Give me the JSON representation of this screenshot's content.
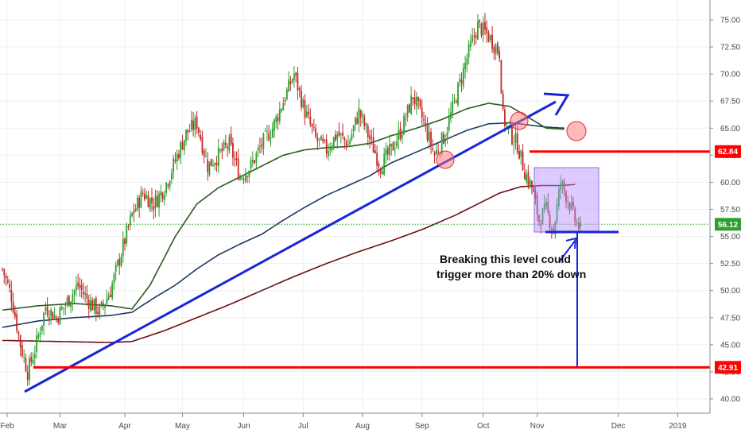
{
  "chart_data": {
    "type": "candlestick",
    "title": "",
    "xlabel": "",
    "ylabel": "",
    "ylim": [
      38.5,
      76.5
    ],
    "y_ticks": [
      "40.00",
      "42.50",
      "45.00",
      "47.50",
      "50.00",
      "52.50",
      "55.00",
      "57.50",
      "60.00",
      "62.50",
      "65.00",
      "67.50",
      "70.00",
      "72.50",
      "75.00"
    ],
    "x_ticks": [
      "Feb",
      "Mar",
      "Apr",
      "May",
      "Jun",
      "Jul",
      "Aug",
      "Sep",
      "Oct",
      "Nov",
      "Dec",
      "2019"
    ],
    "price_tags": [
      {
        "label": "62.84",
        "value": 62.84,
        "color": "#ff0000"
      },
      {
        "label": "56.12",
        "value": 56.12,
        "color": "#2e9e2e"
      },
      {
        "label": "42.91",
        "value": 42.91,
        "color": "#ff0000"
      }
    ],
    "series": [
      {
        "name": "",
        "kind": "ohlc",
        "up_color": "#2e9e2e",
        "down_color": "#c62828"
      },
      {
        "name": "",
        "kind": "moving-average",
        "color": "#2d5a1e"
      },
      {
        "name": "",
        "kind": "moving-average",
        "color": "#1f3a5f"
      },
      {
        "name": "",
        "kind": "moving-average",
        "color": "#6b0f0f"
      }
    ],
    "anchor_points": {
      "price": [
        [
          0,
          52.0
        ],
        [
          5,
          49.5
        ],
        [
          10,
          45.0
        ],
        [
          14,
          42.5
        ],
        [
          18,
          44.5
        ],
        [
          24,
          48.5
        ],
        [
          30,
          47.5
        ],
        [
          36,
          49.0
        ],
        [
          42,
          50.5
        ],
        [
          48,
          49.0
        ],
        [
          54,
          48.0
        ],
        [
          60,
          50.0
        ],
        [
          66,
          53.5
        ],
        [
          72,
          57.0
        ],
        [
          78,
          59.0
        ],
        [
          84,
          58.0
        ],
        [
          90,
          59.5
        ],
        [
          96,
          62.0
        ],
        [
          102,
          64.5
        ],
        [
          108,
          65.5
        ],
        [
          114,
          61.5
        ],
        [
          120,
          62.5
        ],
        [
          126,
          63.5
        ],
        [
          132,
          60.5
        ],
        [
          138,
          61.5
        ],
        [
          144,
          63.5
        ],
        [
          150,
          65.0
        ],
        [
          156,
          67.5
        ],
        [
          162,
          70.0
        ],
        [
          168,
          66.5
        ],
        [
          174,
          64.0
        ],
        [
          180,
          63.0
        ],
        [
          186,
          64.5
        ],
        [
          192,
          63.5
        ],
        [
          198,
          66.5
        ],
        [
          204,
          64.0
        ],
        [
          210,
          61.5
        ],
        [
          216,
          63.0
        ],
        [
          222,
          65.0
        ],
        [
          228,
          68.0
        ],
        [
          234,
          65.5
        ],
        [
          240,
          62.5
        ],
        [
          246,
          64.5
        ],
        [
          252,
          68.0
        ],
        [
          258,
          71.5
        ],
        [
          264,
          74.5
        ],
        [
          270,
          73.5
        ],
        [
          276,
          72.0
        ],
        [
          278,
          66.0
        ],
        [
          282,
          64.5
        ],
        [
          286,
          63.5
        ],
        [
          290,
          61.0
        ],
        [
          294,
          59.5
        ],
        [
          298,
          56.5
        ],
        [
          302,
          57.5
        ],
        [
          306,
          55.5
        ],
        [
          310,
          60.0
        ],
        [
          314,
          58.5
        ],
        [
          318,
          56.5
        ],
        [
          321,
          55.6
        ]
      ],
      "ma_green": [
        [
          0,
          48.2
        ],
        [
          20,
          48.6
        ],
        [
          40,
          48.8
        ],
        [
          60,
          48.6
        ],
        [
          72,
          48.3
        ],
        [
          82,
          50.5
        ],
        [
          96,
          55.0
        ],
        [
          108,
          58.0
        ],
        [
          120,
          59.5
        ],
        [
          132,
          60.5
        ],
        [
          144,
          61.5
        ],
        [
          156,
          62.5
        ],
        [
          168,
          63.0
        ],
        [
          180,
          63.2
        ],
        [
          192,
          63.3
        ],
        [
          204,
          63.6
        ],
        [
          216,
          64.3
        ],
        [
          230,
          65.0
        ],
        [
          244,
          65.8
        ],
        [
          258,
          66.8
        ],
        [
          270,
          67.3
        ],
        [
          282,
          67.0
        ],
        [
          292,
          66.0
        ],
        [
          302,
          65.0
        ],
        [
          312,
          64.9
        ]
      ],
      "ma_navy": [
        [
          0,
          46.6
        ],
        [
          20,
          47.2
        ],
        [
          40,
          47.5
        ],
        [
          60,
          47.7
        ],
        [
          72,
          48.0
        ],
        [
          84,
          49.3
        ],
        [
          96,
          50.5
        ],
        [
          108,
          52.0
        ],
        [
          120,
          53.3
        ],
        [
          132,
          54.3
        ],
        [
          144,
          55.2
        ],
        [
          156,
          56.5
        ],
        [
          168,
          57.7
        ],
        [
          180,
          58.8
        ],
        [
          192,
          59.7
        ],
        [
          204,
          60.6
        ],
        [
          216,
          61.8
        ],
        [
          230,
          62.8
        ],
        [
          244,
          63.8
        ],
        [
          258,
          64.8
        ],
        [
          270,
          65.4
        ],
        [
          282,
          65.5
        ],
        [
          292,
          65.3
        ],
        [
          302,
          65.1
        ],
        [
          312,
          65.0
        ]
      ],
      "ma_maroon": [
        [
          0,
          45.4
        ],
        [
          30,
          45.3
        ],
        [
          60,
          45.2
        ],
        [
          72,
          45.3
        ],
        [
          90,
          46.3
        ],
        [
          108,
          47.5
        ],
        [
          126,
          48.7
        ],
        [
          144,
          50.0
        ],
        [
          162,
          51.3
        ],
        [
          180,
          52.5
        ],
        [
          198,
          53.6
        ],
        [
          216,
          54.6
        ],
        [
          234,
          55.7
        ],
        [
          252,
          57.0
        ],
        [
          264,
          58.0
        ],
        [
          276,
          59.0
        ],
        [
          288,
          59.6
        ],
        [
          300,
          59.7
        ],
        [
          310,
          59.7
        ],
        [
          318,
          59.8
        ]
      ]
    },
    "annotations": {
      "text": [
        "Breaking this level could",
        "trigger more than 20% down"
      ]
    }
  }
}
